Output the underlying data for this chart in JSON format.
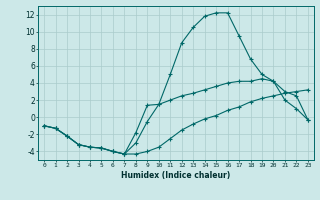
{
  "xlabel": "Humidex (Indice chaleur)",
  "background_color": "#cce8e8",
  "grid_color": "#aacccc",
  "line_color": "#006868",
  "xlim": [
    -0.5,
    23.5
  ],
  "ylim": [
    -5,
    13
  ],
  "xticks": [
    0,
    1,
    2,
    3,
    4,
    5,
    6,
    7,
    8,
    9,
    10,
    11,
    12,
    13,
    14,
    15,
    16,
    17,
    18,
    19,
    20,
    21,
    22,
    23
  ],
  "yticks": [
    -4,
    -2,
    0,
    2,
    4,
    6,
    8,
    10,
    12
  ],
  "line1_x": [
    0,
    1,
    2,
    3,
    4,
    5,
    6,
    7,
    8,
    9,
    10,
    11,
    12,
    13,
    14,
    15,
    16,
    17,
    18,
    19,
    20,
    21,
    22,
    23
  ],
  "line1_y": [
    -1,
    -1.3,
    -2.2,
    -3.2,
    -3.5,
    -3.6,
    -4.0,
    -4.3,
    -4.3,
    -4.0,
    -3.5,
    -2.5,
    -1.5,
    -0.8,
    -0.2,
    0.2,
    0.8,
    1.2,
    1.8,
    2.2,
    2.5,
    2.8,
    3.0,
    3.2
  ],
  "line2_x": [
    0,
    1,
    2,
    3,
    4,
    5,
    6,
    7,
    8,
    9,
    10,
    11,
    12,
    13,
    14,
    15,
    16,
    17,
    18,
    19,
    20,
    21,
    22,
    23
  ],
  "line2_y": [
    -1,
    -1.3,
    -2.2,
    -3.2,
    -3.5,
    -3.6,
    -4.0,
    -4.3,
    -3.0,
    -0.5,
    1.5,
    5.0,
    8.7,
    10.5,
    11.8,
    12.2,
    12.2,
    9.5,
    6.8,
    5.0,
    4.2,
    2.0,
    1.0,
    -0.3
  ],
  "line3_x": [
    0,
    1,
    2,
    3,
    4,
    5,
    6,
    7,
    8,
    9,
    10,
    11,
    12,
    13,
    14,
    15,
    16,
    17,
    18,
    19,
    20,
    21,
    22,
    23
  ],
  "line3_y": [
    -1,
    -1.3,
    -2.2,
    -3.2,
    -3.5,
    -3.6,
    -4.0,
    -4.3,
    -1.8,
    1.4,
    1.5,
    2.0,
    2.5,
    2.8,
    3.2,
    3.6,
    4.0,
    4.2,
    4.2,
    4.5,
    4.2,
    3.0,
    2.5,
    -0.3
  ]
}
